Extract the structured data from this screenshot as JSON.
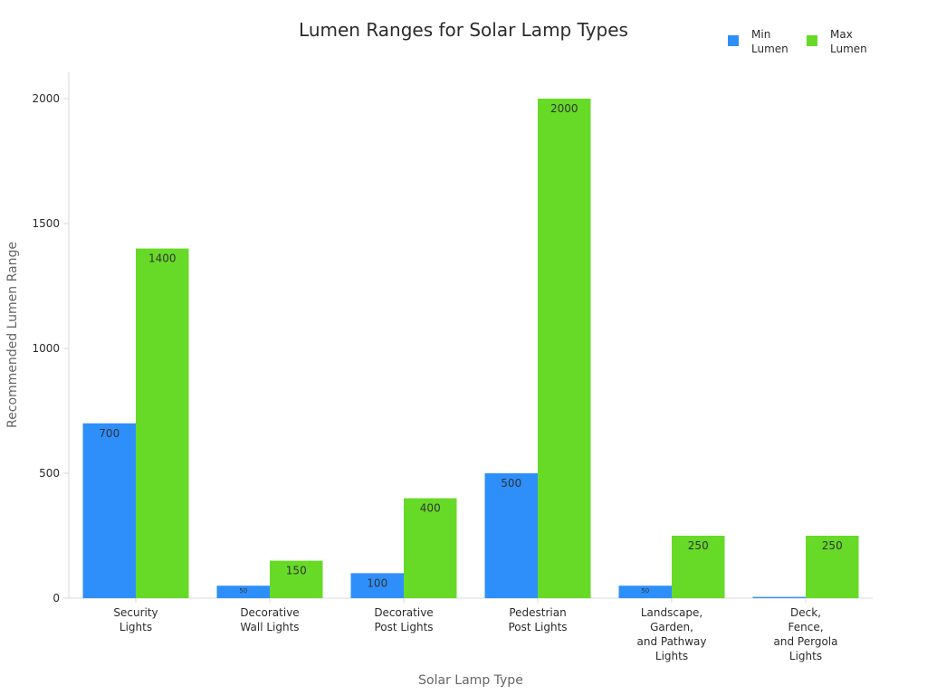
{
  "chart_data": {
    "type": "bar",
    "title": "Lumen Ranges for Solar Lamp Types",
    "xlabel": "Solar Lamp Type",
    "ylabel": "Recommended Lumen Range",
    "categories": [
      [
        "Security",
        "Lights"
      ],
      [
        "Decorative",
        "Wall Lights"
      ],
      [
        "Decorative",
        "Post Lights"
      ],
      [
        "Pedestrian",
        "Post Lights"
      ],
      [
        "Landscape,",
        "Garden,",
        "and Pathway",
        "Lights"
      ],
      [
        "Deck,",
        "Fence,",
        "and Pergola",
        "Lights"
      ]
    ],
    "series": [
      {
        "name": "Min Lumen",
        "legend_lines": [
          "Min",
          "Lumen"
        ],
        "color": "#2e8ffa",
        "values": [
          700,
          50,
          100,
          500,
          50,
          5
        ],
        "labels": [
          "700",
          "50",
          "100",
          "500",
          "50",
          ""
        ]
      },
      {
        "name": "Max Lumen",
        "legend_lines": [
          "Max",
          "Lumen"
        ],
        "color": "#66da26",
        "values": [
          1400,
          150,
          400,
          2000,
          250,
          250
        ],
        "labels": [
          "1400",
          "150",
          "400",
          "2000",
          "250",
          "250"
        ]
      }
    ],
    "ylim": [
      0,
      2100
    ],
    "yticks": [
      0,
      500,
      1000,
      1500,
      2000
    ],
    "legend_position": "top-right",
    "grid": false
  }
}
